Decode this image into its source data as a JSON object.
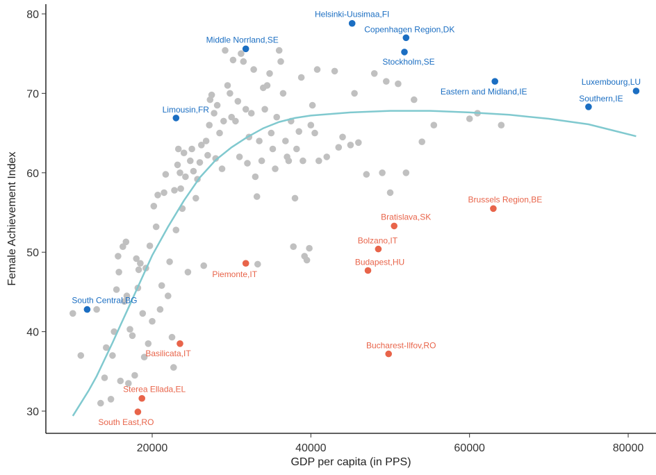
{
  "chart_data": {
    "type": "scatter",
    "xlabel": "GDP per capita (in PPS)",
    "ylabel": "Female Achievement Index",
    "xlim": [
      7000,
      83000
    ],
    "ylim": [
      27.5,
      81
    ],
    "x_ticks": [
      20000,
      40000,
      60000,
      80000
    ],
    "y_ticks": [
      30,
      40,
      50,
      60,
      70,
      80
    ],
    "grid": false,
    "colors": {
      "background": "#c0c0c0",
      "high": "#1b6ec2",
      "low": "#e8644a",
      "trend": "#80c9cf"
    },
    "background_points": [
      [
        10000,
        42.3
      ],
      [
        11000,
        37
      ],
      [
        13000,
        42.8
      ],
      [
        13500,
        31
      ],
      [
        14000,
        34.2
      ],
      [
        14200,
        38
      ],
      [
        14800,
        31.5
      ],
      [
        15000,
        37
      ],
      [
        15200,
        40
      ],
      [
        15500,
        45.3
      ],
      [
        15700,
        49.5
      ],
      [
        15800,
        47.5
      ],
      [
        16000,
        33.8
      ],
      [
        16300,
        50.7
      ],
      [
        16500,
        43.8
      ],
      [
        16700,
        51.3
      ],
      [
        16800,
        44.5
      ],
      [
        17000,
        33.5
      ],
      [
        17200,
        40.3
      ],
      [
        17500,
        39.5
      ],
      [
        17800,
        34.5
      ],
      [
        18000,
        49.2
      ],
      [
        18200,
        45.5
      ],
      [
        18300,
        47.8
      ],
      [
        18500,
        48.6
      ],
      [
        18800,
        42.3
      ],
      [
        19000,
        36.8
      ],
      [
        19200,
        48
      ],
      [
        19500,
        38.5
      ],
      [
        19700,
        50.8
      ],
      [
        20000,
        41.3
      ],
      [
        20200,
        55.8
      ],
      [
        20500,
        53.2
      ],
      [
        20700,
        57.2
      ],
      [
        21000,
        42.8
      ],
      [
        21200,
        45.8
      ],
      [
        21500,
        57.5
      ],
      [
        21700,
        59.8
      ],
      [
        22000,
        44.5
      ],
      [
        22200,
        48.8
      ],
      [
        22500,
        39.3
      ],
      [
        22700,
        35.5
      ],
      [
        22800,
        57.8
      ],
      [
        23000,
        52.8
      ],
      [
        23200,
        61
      ],
      [
        23300,
        63
      ],
      [
        23500,
        60
      ],
      [
        23600,
        58
      ],
      [
        23800,
        55.5
      ],
      [
        24000,
        62.5
      ],
      [
        24200,
        59.5
      ],
      [
        24500,
        47.5
      ],
      [
        24800,
        61.5
      ],
      [
        25000,
        63
      ],
      [
        25200,
        60.2
      ],
      [
        25500,
        56.8
      ],
      [
        25700,
        59.2
      ],
      [
        26000,
        61.3
      ],
      [
        26200,
        63.5
      ],
      [
        26500,
        48.3
      ],
      [
        26800,
        64
      ],
      [
        27000,
        62.2
      ],
      [
        27200,
        66
      ],
      [
        27300,
        69.2
      ],
      [
        27500,
        69.8
      ],
      [
        27800,
        67.5
      ],
      [
        28000,
        61.8
      ],
      [
        28200,
        68.5
      ],
      [
        28500,
        65
      ],
      [
        28800,
        60.5
      ],
      [
        29000,
        66.5
      ],
      [
        29200,
        75.4
      ],
      [
        29500,
        71
      ],
      [
        29800,
        70
      ],
      [
        30000,
        67
      ],
      [
        30200,
        74.2
      ],
      [
        30500,
        66.5
      ],
      [
        30800,
        69
      ],
      [
        31000,
        62
      ],
      [
        31200,
        75
      ],
      [
        31500,
        74
      ],
      [
        31800,
        68
      ],
      [
        32000,
        61.2
      ],
      [
        32200,
        64.5
      ],
      [
        32500,
        67.5
      ],
      [
        32800,
        73
      ],
      [
        33000,
        59.5
      ],
      [
        33200,
        57
      ],
      [
        33300,
        48.5
      ],
      [
        33500,
        64
      ],
      [
        33800,
        61.5
      ],
      [
        34000,
        70.7
      ],
      [
        34200,
        68
      ],
      [
        34500,
        71
      ],
      [
        34800,
        72.5
      ],
      [
        35000,
        65
      ],
      [
        35200,
        63
      ],
      [
        35500,
        60.5
      ],
      [
        35700,
        67
      ],
      [
        36000,
        75.4
      ],
      [
        36200,
        74
      ],
      [
        36500,
        70
      ],
      [
        36800,
        64
      ],
      [
        37000,
        62
      ],
      [
        37200,
        61.5
      ],
      [
        37500,
        66.5
      ],
      [
        37800,
        50.7
      ],
      [
        38000,
        56.8
      ],
      [
        38200,
        63
      ],
      [
        38500,
        65.2
      ],
      [
        38800,
        72
      ],
      [
        39000,
        61.5
      ],
      [
        39200,
        49.5
      ],
      [
        39500,
        49
      ],
      [
        39800,
        50.5
      ],
      [
        40000,
        66
      ],
      [
        40200,
        68.5
      ],
      [
        40500,
        65
      ],
      [
        40800,
        73
      ],
      [
        41000,
        61.5
      ],
      [
        42000,
        62
      ],
      [
        43000,
        72.8
      ],
      [
        43500,
        63.2
      ],
      [
        44000,
        64.5
      ],
      [
        45000,
        63.5
      ],
      [
        45500,
        70
      ],
      [
        46000,
        63.8
      ],
      [
        47000,
        59.8
      ],
      [
        48000,
        72.5
      ],
      [
        49000,
        60
      ],
      [
        49500,
        71.5
      ],
      [
        50000,
        57.5
      ],
      [
        51000,
        71.2
      ],
      [
        52000,
        60
      ],
      [
        53000,
        69.2
      ],
      [
        54000,
        63.9
      ],
      [
        55500,
        66
      ],
      [
        60000,
        66.8
      ],
      [
        61000,
        67.5
      ],
      [
        64000,
        66
      ]
    ],
    "highlight_points": [
      {
        "label": "Helsinki-Uusimaa,FI",
        "x": 45200,
        "y": 78.8,
        "group": "high"
      },
      {
        "label": "Copenhagen Region,DK",
        "x": 52000,
        "y": 77,
        "group": "high"
      },
      {
        "label": "Middle Norrland,SE",
        "x": 31800,
        "y": 75.6,
        "group": "high"
      },
      {
        "label": "Stockholm,SE",
        "x": 51800,
        "y": 75.2,
        "group": "high"
      },
      {
        "label": "Eastern and Midland,IE",
        "x": 63200,
        "y": 71.5,
        "group": "high"
      },
      {
        "label": "Luxembourg,LU",
        "x": 81000,
        "y": 70.3,
        "group": "high"
      },
      {
        "label": "Southern,IE",
        "x": 75000,
        "y": 68.3,
        "group": "high"
      },
      {
        "label": "Limousin,FR",
        "x": 23000,
        "y": 66.9,
        "group": "high"
      },
      {
        "label": "South Central,BG",
        "x": 11800,
        "y": 42.8,
        "group": "high"
      },
      {
        "label": "Brussels Region,BE",
        "x": 63000,
        "y": 55.5,
        "group": "low"
      },
      {
        "label": "Bratislava,SK",
        "x": 50500,
        "y": 53.3,
        "group": "low"
      },
      {
        "label": "Bolzano,IT",
        "x": 48500,
        "y": 50.4,
        "group": "low"
      },
      {
        "label": "Piemonte,IT",
        "x": 31800,
        "y": 48.6,
        "group": "low"
      },
      {
        "label": "Budapest,HU",
        "x": 47200,
        "y": 47.7,
        "group": "low"
      },
      {
        "label": "Basilicata,IT",
        "x": 23500,
        "y": 38.5,
        "group": "low"
      },
      {
        "label": "Bucharest-Ilfov,RO",
        "x": 49800,
        "y": 37.2,
        "group": "low"
      },
      {
        "label": "Sterea Ellada,EL",
        "x": 18700,
        "y": 31.6,
        "group": "low"
      },
      {
        "label": "South East,RO",
        "x": 18200,
        "y": 29.9,
        "group": "low"
      }
    ],
    "trend": [
      [
        10000,
        29.4
      ],
      [
        11000,
        31
      ],
      [
        12000,
        32.6
      ],
      [
        13000,
        34.4
      ],
      [
        14000,
        36.5
      ],
      [
        15000,
        38.6
      ],
      [
        16000,
        40.8
      ],
      [
        17000,
        43
      ],
      [
        18000,
        45.2
      ],
      [
        20000,
        49.6
      ],
      [
        22000,
        53.2
      ],
      [
        24000,
        56.5
      ],
      [
        26000,
        59.4
      ],
      [
        28000,
        61.6
      ],
      [
        30000,
        63.2
      ],
      [
        32000,
        64.5
      ],
      [
        34000,
        65.6
      ],
      [
        36000,
        66.4
      ],
      [
        38000,
        66.9
      ],
      [
        40000,
        67.2
      ],
      [
        45000,
        67.6
      ],
      [
        50000,
        67.8
      ],
      [
        55000,
        67.8
      ],
      [
        60000,
        67.6
      ],
      [
        65000,
        67.3
      ],
      [
        70000,
        66.8
      ],
      [
        75000,
        66.1
      ],
      [
        81000,
        64.6
      ]
    ]
  }
}
